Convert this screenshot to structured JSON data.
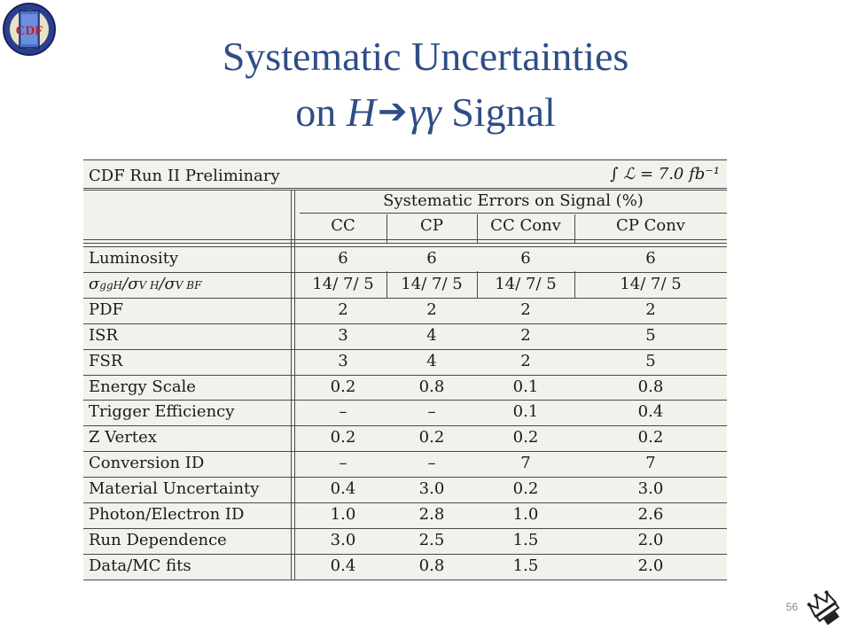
{
  "slide": {
    "title_line1": "Systematic Uncertainties",
    "title_line2_prefix": "on ",
    "title_H": "H",
    "title_arrow": "➔",
    "title_gg": "γγ",
    "title_line2_suffix": " Signal",
    "page_number": "56",
    "logo_text": "CDF",
    "title_color": "#2f4d86"
  },
  "table": {
    "caption_left": "CDF Run II Preliminary",
    "caption_right": "∫ ℒ = 7.0 fb⁻¹",
    "group_header": "Systematic Errors on Signal (%)",
    "columns": [
      "CC",
      "CP",
      "CC Conv",
      "CP Conv"
    ],
    "sigma_label": {
      "s1": "σ",
      "sub1": "ggH",
      "s2": "/σ",
      "sub2": "V H",
      "s3": "/σ",
      "sub3": "V BF"
    },
    "rows": [
      {
        "label": "Luminosity",
        "values": [
          "6",
          "6",
          "6",
          "6"
        ]
      },
      {
        "label": "",
        "values": [
          "14/ 7/ 5",
          "14/ 7/ 5",
          "14/ 7/ 5",
          "14/ 7/ 5"
        ]
      },
      {
        "label": "PDF",
        "values": [
          "2",
          "2",
          "2",
          "2"
        ]
      },
      {
        "label": "ISR",
        "values": [
          "3",
          "4",
          "2",
          "5"
        ]
      },
      {
        "label": "FSR",
        "values": [
          "3",
          "4",
          "2",
          "5"
        ]
      },
      {
        "label": "Energy Scale",
        "values": [
          "0.2",
          "0.8",
          "0.1",
          "0.8"
        ]
      },
      {
        "label": "Trigger Efficiency",
        "values": [
          "–",
          "–",
          "0.1",
          "0.4"
        ]
      },
      {
        "label": "Z Vertex",
        "values": [
          "0.2",
          "0.2",
          "0.2",
          "0.2"
        ]
      },
      {
        "label": "Conversion ID",
        "values": [
          "–",
          "–",
          "7",
          "7"
        ]
      },
      {
        "label": "Material Uncertainty",
        "values": [
          "0.4",
          "3.0",
          "0.2",
          "3.0"
        ]
      },
      {
        "label": "Photon/Electron ID",
        "values": [
          "1.0",
          "2.8",
          "1.0",
          "2.6"
        ]
      },
      {
        "label": "Run Dependence",
        "values": [
          "3.0",
          "2.5",
          "1.5",
          "2.0"
        ]
      },
      {
        "label": "Data/MC fits",
        "values": [
          "0.4",
          "0.8",
          "1.5",
          "2.0"
        ]
      }
    ]
  }
}
